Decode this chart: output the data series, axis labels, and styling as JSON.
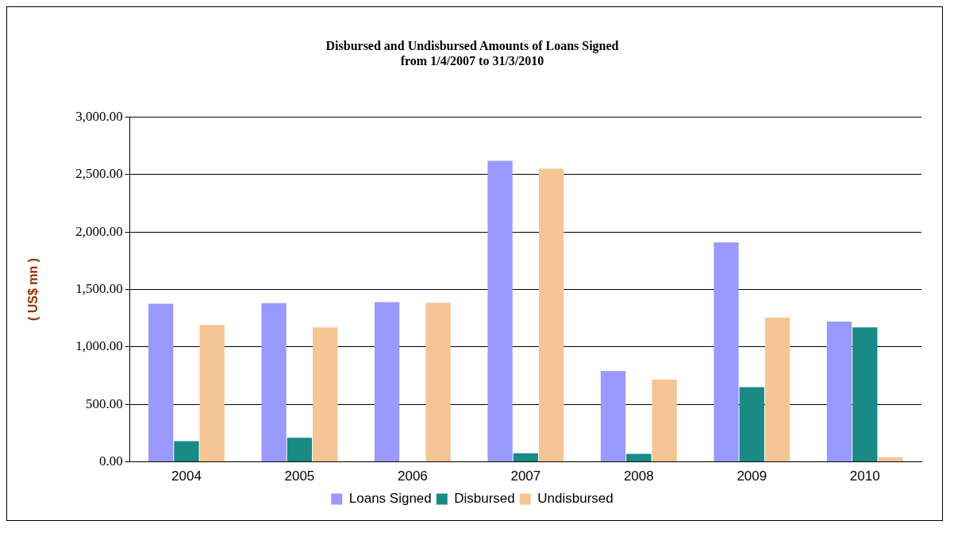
{
  "chart_data": {
    "type": "bar",
    "title": "Disbursed and Undisbursed Amounts of Loans Signed\nfrom 1/4/2007 to 31/3/2010",
    "ylabel": "( US$ mn )",
    "categories": [
      "2004",
      "2005",
      "2006",
      "2007",
      "2008",
      "2009",
      "2010"
    ],
    "series": [
      {
        "name": "Loans Signed",
        "color": "#9999ff",
        "values": [
          1375,
          1380,
          1390,
          2620,
          790,
          1910,
          1220
        ]
      },
      {
        "name": "Disbursed",
        "color": "#1a8a85",
        "values": [
          180,
          210,
          null,
          75,
          70,
          650,
          1170
        ]
      },
      {
        "name": "Undisbursed",
        "color": "#f5c593",
        "values": [
          1190,
          1170,
          1385,
          2550,
          715,
          1255,
          40
        ]
      }
    ],
    "ylim": [
      0,
      3000
    ],
    "yticks": [
      {
        "value": 0,
        "label": "0.00"
      },
      {
        "value": 500,
        "label": "500.00"
      },
      {
        "value": 1000,
        "label": "1,000.00"
      },
      {
        "value": 1500,
        "label": "1,500.00"
      },
      {
        "value": 2000,
        "label": "2,000.00"
      },
      {
        "value": 2500,
        "label": "2,500.00"
      },
      {
        "value": 3000,
        "label": "3,000.00"
      }
    ],
    "grid": "y",
    "legend": "bottom"
  }
}
